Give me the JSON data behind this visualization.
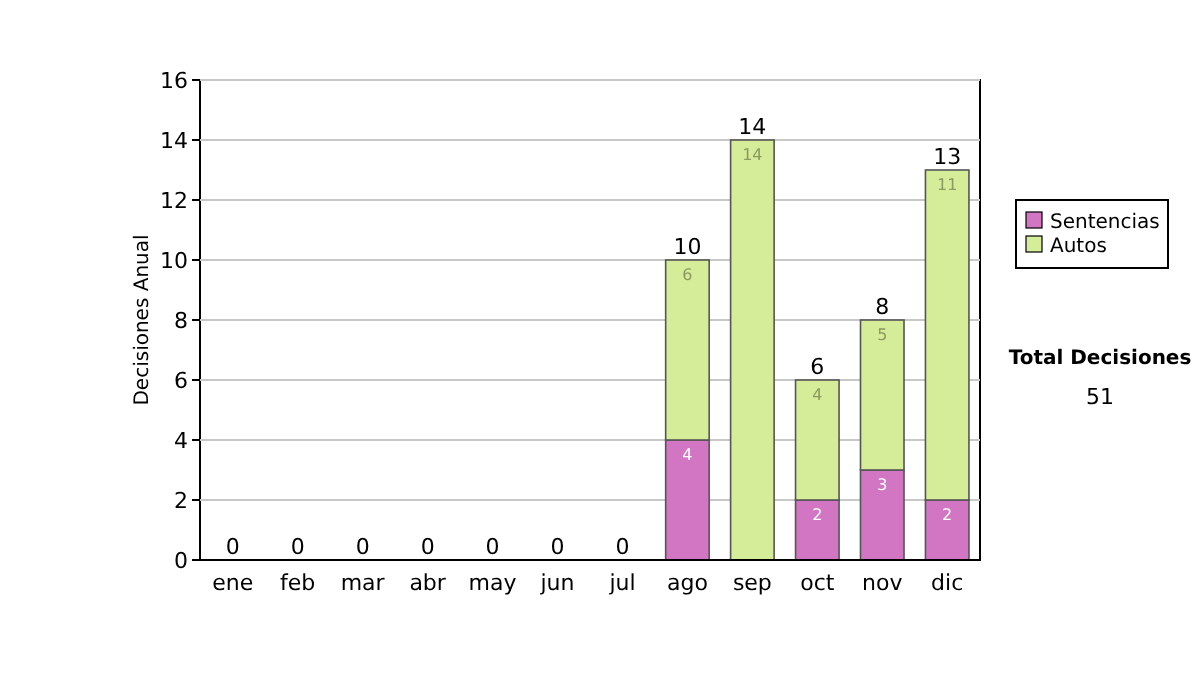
{
  "chart_data": {
    "type": "bar",
    "stacked": true,
    "ylabel": "Decisiones Anual",
    "categories": [
      "ene",
      "feb",
      "mar",
      "abr",
      "may",
      "jun",
      "jul",
      "ago",
      "sep",
      "oct",
      "nov",
      "dic"
    ],
    "series": [
      {
        "name": "Sentencias",
        "color": "#d276c4",
        "values": [
          0,
          0,
          0,
          0,
          0,
          0,
          0,
          4,
          0,
          2,
          3,
          2
        ],
        "value_labels": [
          null,
          null,
          null,
          null,
          null,
          null,
          null,
          "4",
          null,
          "2",
          "3",
          "2"
        ]
      },
      {
        "name": "Autos",
        "color": "#d5ec98",
        "values": [
          0,
          0,
          0,
          0,
          0,
          0,
          0,
          6,
          14,
          4,
          5,
          11
        ],
        "value_labels": [
          null,
          null,
          null,
          null,
          null,
          null,
          null,
          "6",
          "14",
          "4",
          "5",
          "11"
        ]
      }
    ],
    "totals": [
      "0",
      "0",
      "0",
      "0",
      "0",
      "0",
      "0",
      "10",
      "14",
      "6",
      "8",
      "13"
    ],
    "ylim": [
      0,
      16
    ],
    "yticks": [
      0,
      2,
      4,
      6,
      8,
      10,
      12,
      14,
      16
    ],
    "grid": "y",
    "legend": "right",
    "annotations": [
      "Total Decisiones",
      "51"
    ]
  }
}
